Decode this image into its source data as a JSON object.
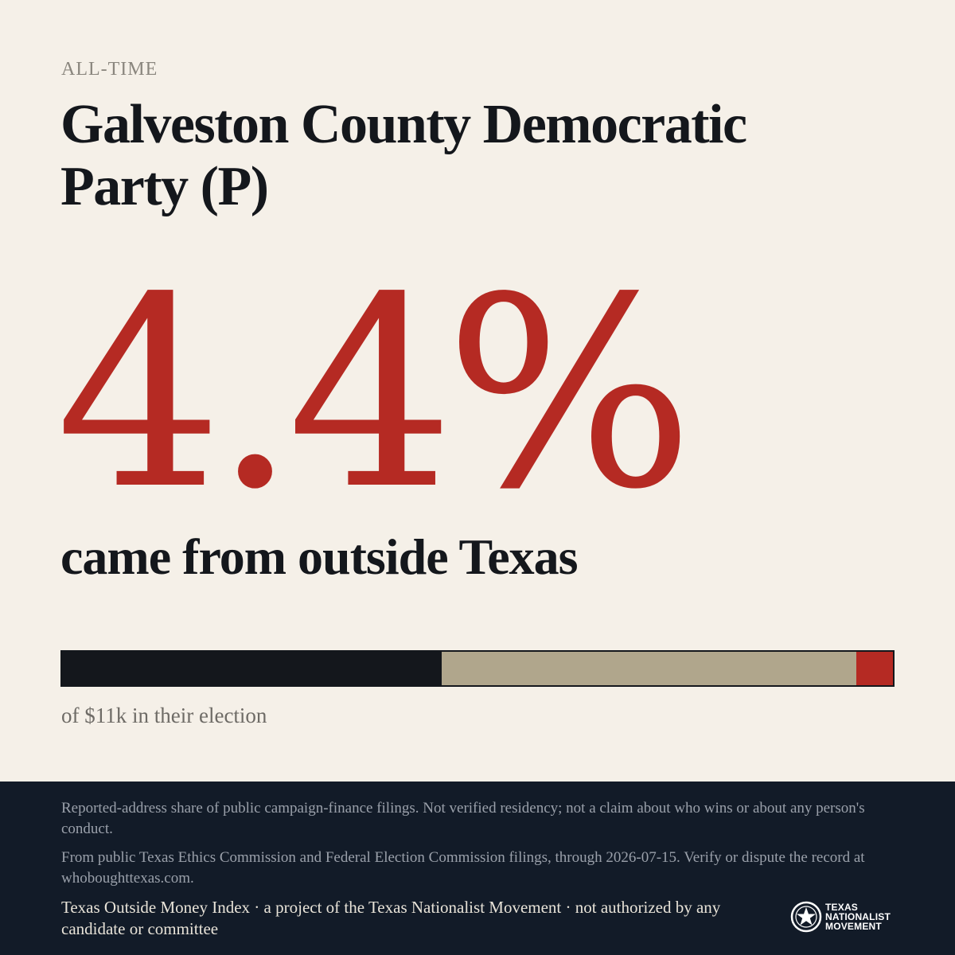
{
  "period_label": "ALL-TIME",
  "title": "Galveston County Democratic Party (P)",
  "percent_display": "4.4%",
  "percent_value": 4.4,
  "subtitle": "came from outside Texas",
  "total_text": "of $11k in their election",
  "bar": {
    "segments": [
      {
        "key": "segment-dark",
        "fraction": 0.457,
        "color": "#14171c"
      },
      {
        "key": "segment-tan",
        "fraction": 0.499,
        "color": "#b0a68c"
      },
      {
        "key": "segment-red",
        "fraction": 0.044,
        "color": "#b52a23"
      }
    ]
  },
  "footer": {
    "disclaimer_1": "Reported-address share of public campaign-finance filings. Not verified residency; not a claim about who wins or about any person's conduct.",
    "disclaimer_2": "From public Texas Ethics Commission and Federal Election Commission filings, through 2026-07-15. Verify or dispute the record at whoboughttexas.com.",
    "credit": "Texas Outside Money Index · a project of the Texas Nationalist Movement · not authorized by any candidate or committee",
    "logo_line_1": "TEXAS",
    "logo_line_2": "NATIONALIST",
    "logo_line_3": "MOVEMENT"
  },
  "colors": {
    "background": "#f5f0e8",
    "accent_red": "#b52a23",
    "ink": "#14171c",
    "footer_bg": "#121b28"
  }
}
